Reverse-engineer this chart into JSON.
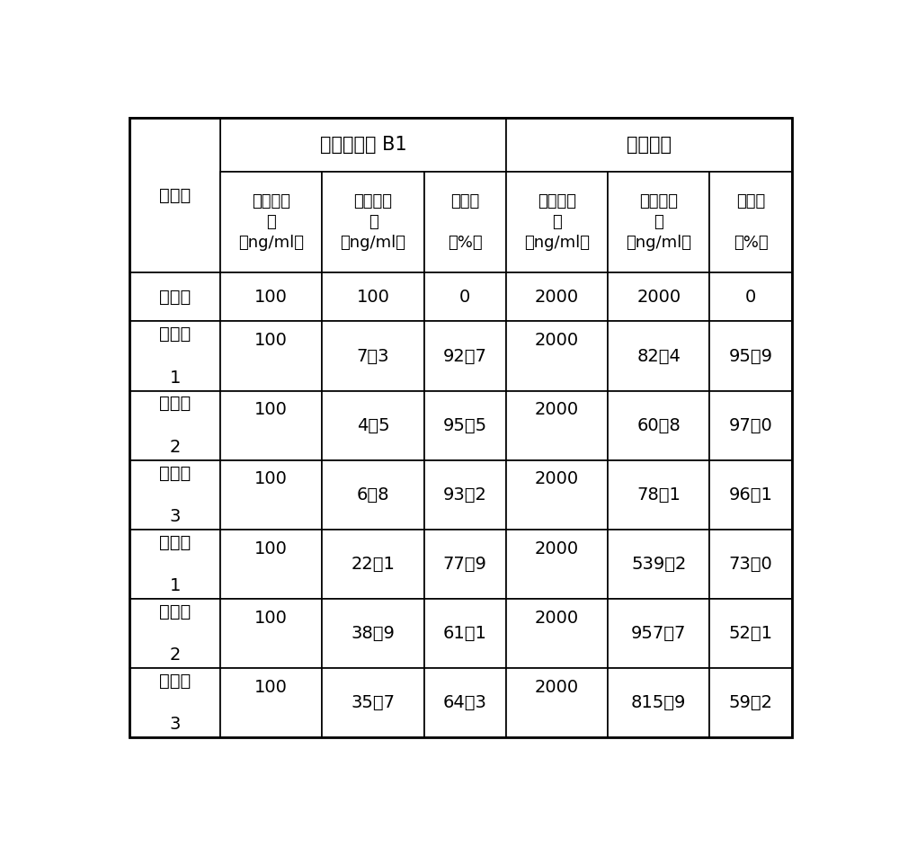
{
  "header_group1": "黄曲霉毒素 B1",
  "header_group2": "告吐毒素",
  "col0_header": "试验组",
  "sub_headers": [
    "脱毒前浓\n度\n（ng/ml）",
    "脱毒后浓\n度\n（ng/ml）",
    "脱毒率\n\n（%）",
    "脱毒前浓\n度\n（ng/ml）",
    "脱毒后浓\n度\n（ng/ml）",
    "脱毒率\n\n（%）"
  ],
  "rows": [
    {
      "label": "对照组",
      "vals": [
        "100",
        "100",
        "0",
        "2000",
        "2000",
        "0"
      ]
    },
    {
      "label": "实施例\n\n1",
      "vals": [
        "100",
        "7．3",
        "92．7",
        "2000",
        "82．4",
        "95．9"
      ]
    },
    {
      "label": "实施例\n\n2",
      "vals": [
        "100",
        "4．5",
        "95．5",
        "2000",
        "60．8",
        "97．0"
      ]
    },
    {
      "label": "实施例\n\n3",
      "vals": [
        "100",
        "6．8",
        "93．2",
        "2000",
        "78．1",
        "96．1"
      ]
    },
    {
      "label": "对比例\n\n1",
      "vals": [
        "100",
        "22．1",
        "77．9",
        "2000",
        "539．2",
        "73．0"
      ]
    },
    {
      "label": "对比例\n\n2",
      "vals": [
        "100",
        "38．9",
        "61．1",
        "2000",
        "957．7",
        "52．1"
      ]
    },
    {
      "label": "对比例\n\n3",
      "vals": [
        "100",
        "35．7",
        "64．3",
        "2000",
        "815．9",
        "59．2"
      ]
    }
  ],
  "col_weights": [
    1.05,
    1.18,
    1.18,
    0.95,
    1.18,
    1.18,
    0.95
  ],
  "bg_color": "#ffffff",
  "border_color": "#000000",
  "text_color": "#000000"
}
